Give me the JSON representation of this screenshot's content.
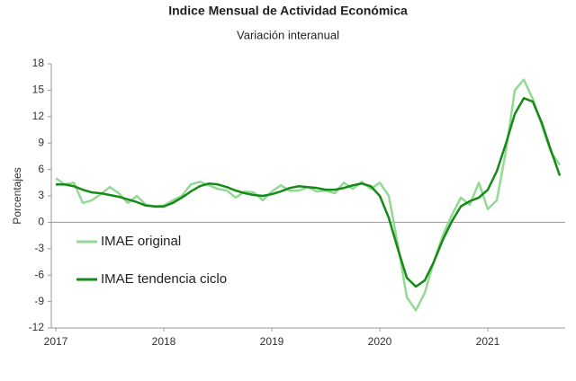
{
  "chart_data": {
    "type": "line",
    "title": "Indice Mensual de  Actividad Económica",
    "subtitle": "Variación interanual",
    "y_label": "Porcentajes",
    "categories": [
      "2017",
      null,
      null,
      null,
      null,
      null,
      null,
      null,
      null,
      null,
      null,
      null,
      "2018",
      null,
      null,
      null,
      null,
      null,
      null,
      null,
      null,
      null,
      null,
      null,
      "2019",
      null,
      null,
      null,
      null,
      null,
      null,
      null,
      null,
      null,
      null,
      null,
      "2020",
      null,
      null,
      null,
      null,
      null,
      null,
      null,
      null,
      null,
      null,
      null,
      "2021",
      null,
      null,
      null,
      null,
      null,
      null,
      null,
      null
    ],
    "series": [
      {
        "name": "IMAE original",
        "color": "#93d993",
        "values": [
          5.0,
          4.3,
          4.5,
          2.2,
          2.5,
          3.2,
          4.0,
          3.3,
          2.2,
          3.0,
          2.0,
          1.8,
          1.9,
          2.5,
          3.0,
          4.3,
          4.6,
          4.2,
          3.8,
          3.6,
          2.8,
          3.5,
          3.4,
          2.5,
          3.5,
          4.2,
          3.6,
          3.6,
          4.0,
          3.5,
          3.6,
          3.3,
          4.5,
          3.8,
          4.6,
          3.8,
          4.5,
          3.0,
          -2.5,
          -8.5,
          -10.0,
          -8.0,
          -4.5,
          -1.5,
          0.8,
          2.8,
          2.0,
          4.5,
          1.5,
          2.5,
          8.0,
          15.0,
          16.2,
          14.0,
          11.0,
          8.0,
          6.5
        ]
      },
      {
        "name": "IMAE tendencia ciclo",
        "color": "#168a16",
        "values": [
          4.3,
          4.3,
          4.1,
          3.7,
          3.4,
          3.3,
          3.1,
          2.9,
          2.6,
          2.3,
          1.9,
          1.8,
          1.8,
          2.2,
          2.8,
          3.5,
          4.1,
          4.4,
          4.3,
          4.0,
          3.6,
          3.3,
          3.1,
          3.0,
          3.2,
          3.5,
          3.9,
          4.1,
          4.0,
          3.9,
          3.7,
          3.7,
          3.9,
          4.2,
          4.4,
          4.1,
          3.0,
          0.5,
          -3.0,
          -6.3,
          -7.3,
          -6.6,
          -4.5,
          -2.0,
          0.1,
          1.8,
          2.4,
          2.8,
          3.7,
          5.8,
          8.9,
          12.3,
          14.1,
          13.7,
          11.3,
          8.2,
          5.3
        ]
      }
    ],
    "ylim": [
      -12,
      18
    ],
    "yticks": [
      -12,
      -9,
      -6,
      -3,
      0,
      3,
      6,
      9,
      12,
      15,
      18
    ]
  }
}
